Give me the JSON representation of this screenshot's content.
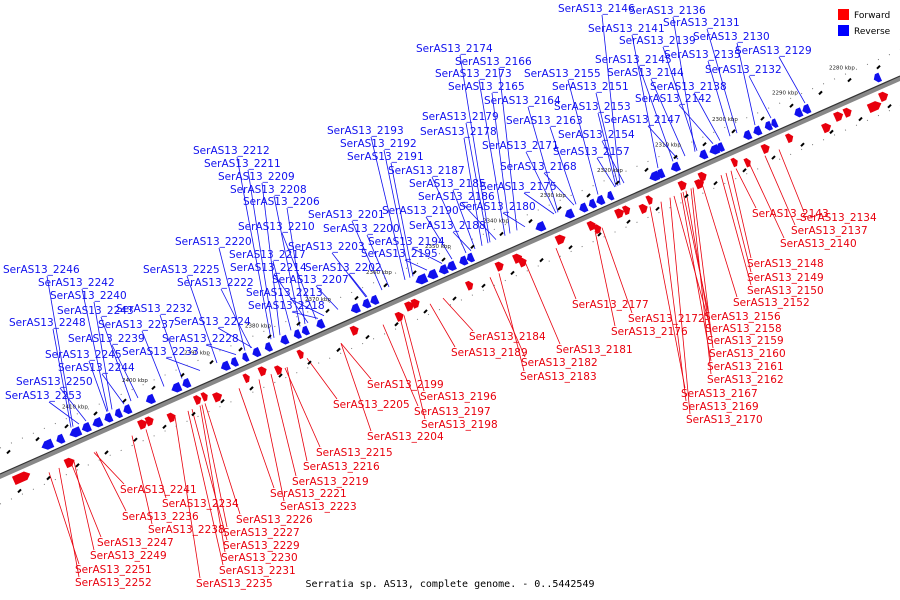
{
  "caption": "Serratia sp. AS13, complete genome. - 0..5442549",
  "legend": [
    {
      "label": "Forward",
      "color": "#ff0000"
    },
    {
      "label": "Reverse",
      "color": "#0000ff"
    }
  ],
  "colors": {
    "forward": "#e8000d",
    "reverse": "#1010ee",
    "backbone": "#555555"
  },
  "ticks": [
    "2280 kbp",
    "2290 kbp",
    "2300 kbp",
    "2310 kbp",
    "2320 kbp",
    "2330 kbp",
    "2340 kbp",
    "2350 kbp",
    "2360 kbp",
    "2370 kbp",
    "2380 kbp",
    "2390 kbp",
    "2400 kbp",
    "2410 kbp"
  ],
  "reverse_labels": [
    "SerAS13_2146",
    "SerAS13_2136",
    "SerAS13_2141",
    "SerAS13_2131",
    "SerAS13_2139",
    "SerAS13_2130",
    "SerAS13_2135",
    "SerAS13_2129",
    "SerAS13_2174",
    "SerAS13_2145",
    "SerAS13_2166",
    "SerAS13_2132",
    "SerAS13_2173",
    "SerAS13_2155",
    "SerAS13_2144",
    "SerAS13_2165",
    "SerAS13_2151",
    "SerAS13_2138",
    "SerAS13_2164",
    "SerAS13_2142",
    "SerAS13_2153",
    "SerAS13_2179",
    "SerAS13_2163",
    "SerAS13_2147",
    "SerAS13_2193",
    "SerAS13_2178",
    "SerAS13_2154",
    "SerAS13_2192",
    "SerAS13_2171",
    "SerAS13_2212",
    "SerAS13_2157",
    "SerAS13_2191",
    "SerAS13_2211",
    "SerAS13_2168",
    "SerAS13_2187",
    "SerAS13_2209",
    "SerAS13_2185",
    "SerAS13_2208",
    "SerAS13_2175",
    "SerAS13_2186",
    "SerAS13_2206",
    "SerAS13_2180",
    "SerAS13_2190",
    "SerAS13_2201",
    "SerAS13_2210",
    "SerAS13_2188",
    "SerAS13_2200",
    "SerAS13_2220",
    "SerAS13_2194",
    "SerAS13_2203",
    "SerAS13_2217",
    "SerAS13_2195",
    "SerAS13_2246",
    "SerAS13_2225",
    "SerAS13_2214",
    "SerAS13_2202",
    "SerAS13_2207",
    "SerAS13_2242",
    "SerAS13_2222",
    "SerAS13_2213",
    "SerAS13_2240",
    "SerAS13_2232",
    "SerAS13_2218",
    "SerAS13_2243",
    "SerAS13_2224",
    "SerAS13_2248",
    "SerAS13_2237",
    "SerAS13_2239",
    "SerAS13_2228",
    "SerAS13_2233",
    "SerAS13_2245",
    "SerAS13_2244",
    "SerAS13_2250",
    "SerAS13_2253"
  ],
  "forward_labels": [
    "SerAS13_2143",
    "SerAS13_2134",
    "SerAS13_2137",
    "SerAS13_2140",
    "SerAS13_2148",
    "SerAS13_2149",
    "SerAS13_2150",
    "SerAS13_2152",
    "SerAS13_2177",
    "SerAS13_2156",
    "SerAS13_2172",
    "SerAS13_2158",
    "SerAS13_2176",
    "SerAS13_2159",
    "SerAS13_2184",
    "SerAS13_2181",
    "SerAS13_2160",
    "SerAS13_2189",
    "SerAS13_2161",
    "SerAS13_2182",
    "SerAS13_2162",
    "SerAS13_2183",
    "SerAS13_2199",
    "SerAS13_2167",
    "SerAS13_2196",
    "SerAS13_2169",
    "SerAS13_2205",
    "SerAS13_2197",
    "SerAS13_2170",
    "SerAS13_2198",
    "SerAS13_2204",
    "SerAS13_2215",
    "SerAS13_2216",
    "SerAS13_2219",
    "SerAS13_2241",
    "SerAS13_2221",
    "SerAS13_2234",
    "SerAS13_2223",
    "SerAS13_2236",
    "SerAS13_2226",
    "SerAS13_2238",
    "SerAS13_2227",
    "SerAS13_2247",
    "SerAS13_2229",
    "SerAS13_2249",
    "SerAS13_2230",
    "SerAS13_2251",
    "SerAS13_2231",
    "SerAS13_2252",
    "SerAS13_2235"
  ]
}
